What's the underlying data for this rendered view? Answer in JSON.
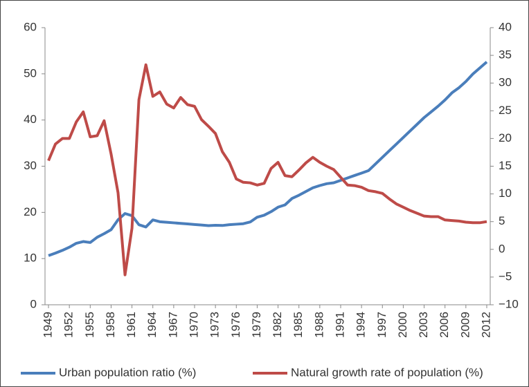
{
  "chart_data": {
    "type": "line",
    "x": [
      1949,
      1950,
      1951,
      1952,
      1953,
      1954,
      1955,
      1956,
      1957,
      1958,
      1959,
      1960,
      1961,
      1962,
      1963,
      1964,
      1965,
      1966,
      1967,
      1968,
      1969,
      1970,
      1971,
      1972,
      1973,
      1974,
      1975,
      1976,
      1977,
      1978,
      1979,
      1980,
      1981,
      1982,
      1983,
      1984,
      1985,
      1986,
      1987,
      1988,
      1989,
      1990,
      1991,
      1992,
      1993,
      1994,
      1995,
      1996,
      1997,
      1998,
      1999,
      2000,
      2001,
      2002,
      2003,
      2004,
      2005,
      2006,
      2007,
      2008,
      2009,
      2010,
      2011,
      2012
    ],
    "xlim": [
      1948.5,
      2012.5
    ],
    "xticks": [
      1949,
      1952,
      1955,
      1958,
      1961,
      1964,
      1967,
      1970,
      1973,
      1976,
      1979,
      1982,
      1985,
      1988,
      1991,
      1994,
      1997,
      2000,
      2003,
      2006,
      2009,
      2012
    ],
    "ylim": [
      0,
      60
    ],
    "yticks": [
      0,
      10,
      20,
      30,
      40,
      50,
      60
    ],
    "y2lim": [
      -10,
      40
    ],
    "y2ticks": [
      {
        "value": -10,
        "label": "−10"
      },
      {
        "value": -5,
        "label": "−5"
      },
      0,
      5,
      10,
      15,
      20,
      25,
      30,
      35,
      40
    ],
    "legend": "bottom",
    "series": [
      {
        "name": "Urban population ratio (%)",
        "color": "#4a7ebb",
        "values": [
          10.64,
          11.18,
          11.78,
          12.46,
          13.31,
          13.69,
          13.48,
          14.62,
          15.39,
          16.25,
          18.41,
          19.75,
          19.29,
          17.33,
          16.84,
          18.37,
          17.98,
          17.86,
          17.74,
          17.62,
          17.5,
          17.38,
          17.26,
          17.13,
          17.2,
          17.16,
          17.34,
          17.44,
          17.55,
          17.92,
          18.96,
          19.39,
          20.16,
          21.13,
          21.62,
          23.01,
          23.71,
          24.52,
          25.32,
          25.81,
          26.21,
          26.41,
          26.94,
          27.46,
          27.99,
          28.51,
          29.04,
          30.48,
          31.91,
          33.35,
          34.78,
          36.22,
          37.66,
          39.09,
          40.53,
          41.76,
          42.99,
          44.34,
          45.89,
          46.99,
          48.34,
          49.95,
          51.27,
          52.57
        ]
      },
      {
        "name": "Natural growth rate of population (%)",
        "color": "#be4b48",
        "axis": "y2",
        "values": [
          16.0,
          19.0,
          20.0,
          20.0,
          23.0,
          24.8,
          20.3,
          20.5,
          23.2,
          17.2,
          10.2,
          -4.6,
          3.8,
          27.0,
          33.3,
          27.6,
          28.4,
          26.2,
          25.5,
          27.4,
          26.1,
          25.8,
          23.4,
          22.2,
          20.9,
          17.6,
          15.7,
          12.7,
          12.1,
          12.0,
          11.6,
          11.9,
          14.6,
          15.7,
          13.3,
          13.1,
          14.3,
          15.6,
          16.6,
          15.7,
          15.0,
          14.4,
          13.0,
          11.6,
          11.5,
          11.2,
          10.6,
          10.4,
          10.1,
          9.1,
          8.2,
          7.6,
          7.0,
          6.5,
          6.0,
          5.9,
          5.9,
          5.3,
          5.2,
          5.1,
          4.9,
          4.8,
          4.8,
          5.0
        ]
      }
    ]
  }
}
